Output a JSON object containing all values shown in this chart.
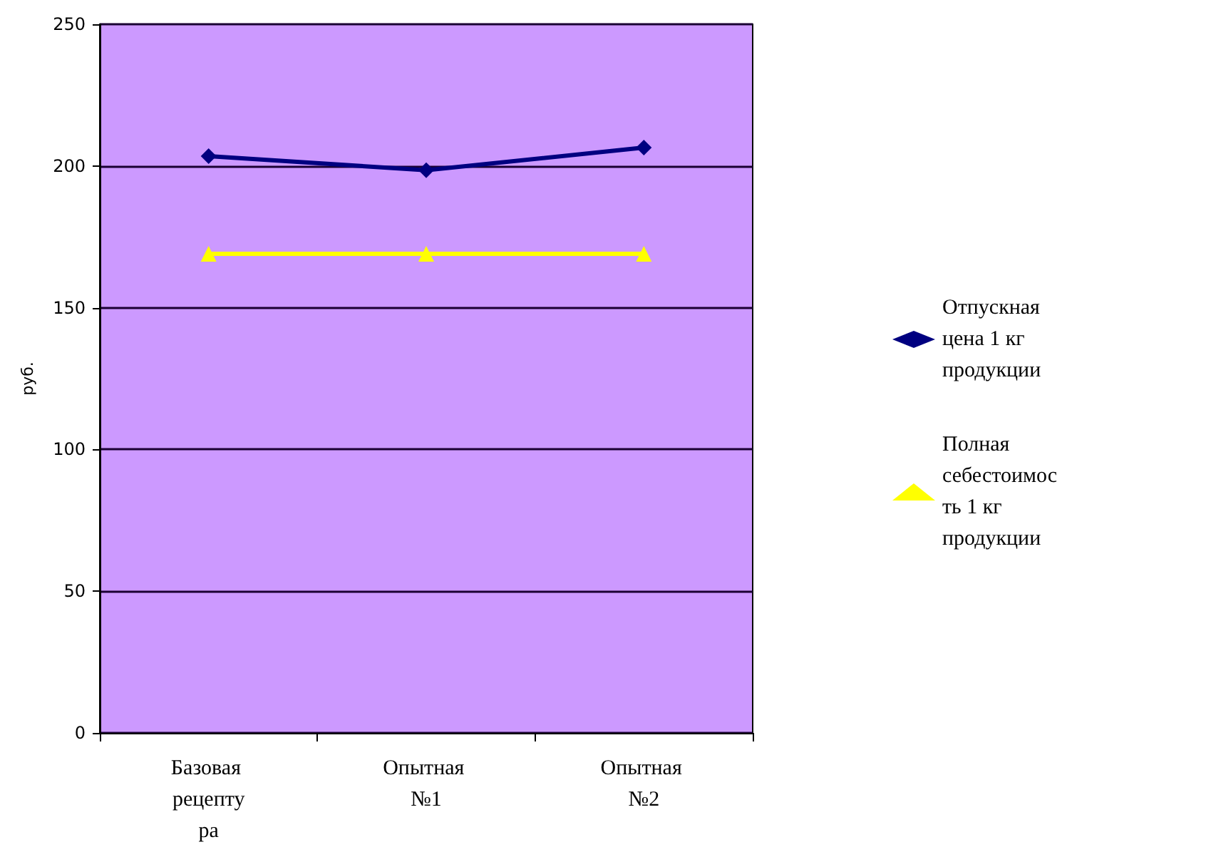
{
  "chart_data": {
    "type": "line",
    "ylabel": "руб.",
    "categories": [
      "Базовая рецептура",
      "Опытная №1",
      "Опытная №2"
    ],
    "series": [
      {
        "name": "Отпускная цена 1 кг продукции",
        "color": "#000080",
        "marker": "diamond",
        "values": [
          203.5,
          198.5,
          206.5
        ]
      },
      {
        "name": "Полная себестоимость 1 кг продукции",
        "color": "#ffff00",
        "marker": "triangle",
        "values": [
          169,
          169,
          169
        ]
      }
    ],
    "ylim": [
      0,
      250
    ],
    "yticks": [
      0,
      50,
      100,
      150,
      200,
      250
    ],
    "grid": "y",
    "legend": "right",
    "line_style": "solid"
  }
}
